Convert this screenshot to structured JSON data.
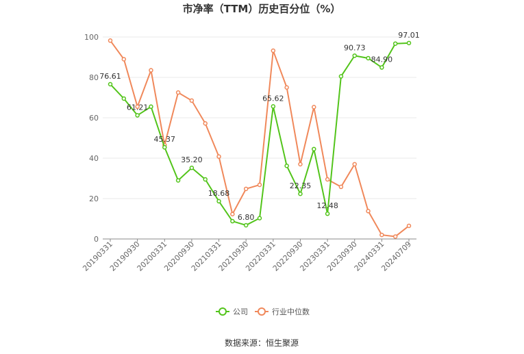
{
  "chart_data": {
    "type": "line",
    "title": "市净率（TTM）历史百分位（%）",
    "ylim": [
      0,
      100
    ],
    "yticks": [
      0,
      20,
      40,
      60,
      80,
      100
    ],
    "x": [
      "20190331",
      "20190630",
      "20190930",
      "20191231",
      "20200331",
      "20200630",
      "20200930",
      "20201231",
      "20210331",
      "20210630",
      "20210930",
      "20211231",
      "20220331",
      "20220630",
      "20220930",
      "20221231",
      "20230331",
      "20230630",
      "20230930",
      "20231231",
      "20240331",
      "20240630",
      "20240709"
    ],
    "xticks": [
      "20190331",
      "20190930",
      "20200331",
      "20200930",
      "20210331",
      "20210930",
      "20220331",
      "20220930",
      "20230331",
      "20230930",
      "20240331",
      "20240709"
    ],
    "series": [
      {
        "name": "公司",
        "color": "#52c41a",
        "values": [
          76.61,
          69.5,
          61.21,
          65.5,
          45.37,
          29.0,
          35.2,
          29.5,
          18.68,
          8.8,
          6.8,
          10.3,
          65.62,
          36.2,
          22.35,
          44.5,
          12.48,
          80.5,
          90.73,
          89.5,
          84.9,
          96.7,
          97.01
        ],
        "labels": {
          "0": "76.61",
          "2": "61.21",
          "4": "45.37",
          "6": "35.20",
          "8": "18.68",
          "10": "6.80",
          "12": "65.62",
          "14": "22.35",
          "16": "12.48",
          "18": "90.73",
          "20": "84.90",
          "22": "97.01"
        }
      },
      {
        "name": "行业中位数",
        "color": "#f0885a",
        "values": [
          98.2,
          89.0,
          65.5,
          83.5,
          46.5,
          72.5,
          68.5,
          57.2,
          40.8,
          12.3,
          24.8,
          26.8,
          93.2,
          75.0,
          37.0,
          65.3,
          29.5,
          25.8,
          37.0,
          13.8,
          2.0,
          1.2,
          6.5
        ]
      }
    ],
    "legend_position": "bottom-center",
    "grid": true
  },
  "footer": {
    "source": "数据来源：恒生聚源"
  }
}
